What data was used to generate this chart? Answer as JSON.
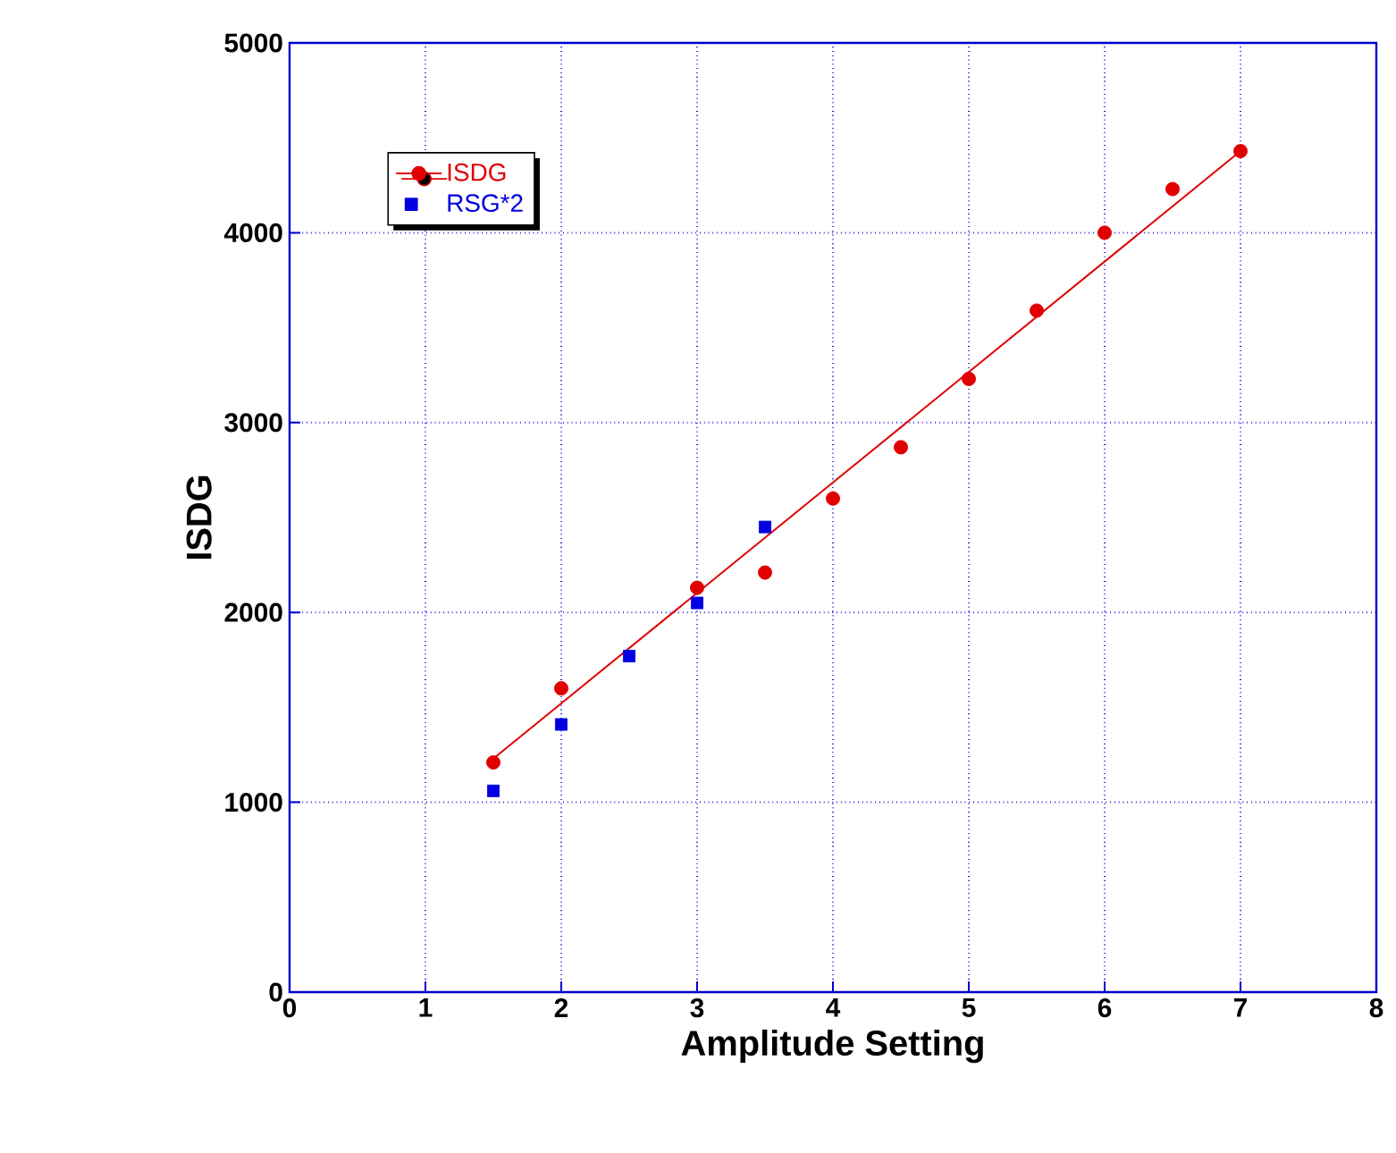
{
  "chart_data": {
    "type": "scatter",
    "xlabel": "Amplitude Setting",
    "ylabel": "ISDG",
    "xlim": [
      0,
      8
    ],
    "xticks": [
      0,
      1,
      2,
      3,
      4,
      5,
      6,
      7,
      8
    ],
    "ylim": [
      0,
      5000
    ],
    "yticks": [
      0,
      1000,
      2000,
      3000,
      4000,
      5000
    ],
    "grid": true,
    "legend": "top left",
    "series": [
      {
        "name": "ISDG",
        "color": "#e00000",
        "marker": "circle",
        "x": [
          1.5,
          2,
          3,
          3.5,
          4,
          4.5,
          5,
          5.5,
          6,
          6.5,
          7
        ],
        "values": [
          1210,
          1600,
          2130,
          2210,
          2600,
          2870,
          3230,
          3590,
          4000,
          4230,
          4430
        ]
      },
      {
        "name": "RSG*2",
        "color": "#0000e0",
        "marker": "square",
        "x": [
          1.5,
          2,
          2.5,
          3,
          3.5
        ],
        "values": [
          1060,
          1410,
          1770,
          2050,
          2450
        ]
      },
      {
        "type": "line",
        "color": "#e00000",
        "marker": "none",
        "x": [
          1.5,
          7
        ],
        "values": [
          1230,
          4430
        ]
      }
    ]
  }
}
